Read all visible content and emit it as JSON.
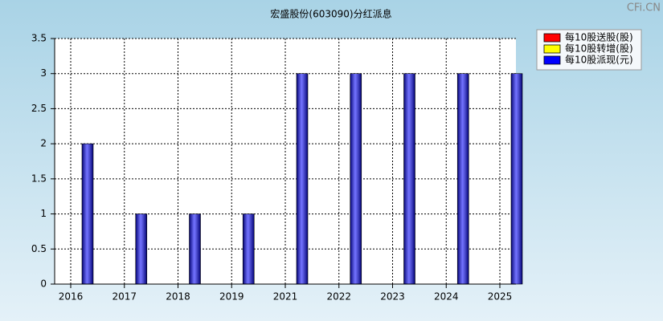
{
  "chart_data": {
    "type": "bar",
    "title": "宏盛股份(603090)分红派息",
    "watermark": "CFi.CN",
    "categories": [
      "2016",
      "2017",
      "2018",
      "2019",
      "2021",
      "2022",
      "2023",
      "2024",
      "2025"
    ],
    "series": [
      {
        "name": "每10股送股(股)",
        "color": "#ff0000",
        "values": [
          0,
          0,
          0,
          0,
          0,
          0,
          0,
          0,
          0
        ]
      },
      {
        "name": "每10股转增(股)",
        "color": "#ffff00",
        "values": [
          0,
          0,
          0,
          0,
          0,
          0,
          0,
          0,
          0
        ]
      },
      {
        "name": "每10股派现(元)",
        "color": "#0000ff",
        "values": [
          2,
          1,
          1,
          1,
          3,
          3,
          3,
          3,
          3
        ]
      }
    ],
    "ylim": [
      0,
      3.5
    ],
    "yticks": [
      0,
      0.5,
      1,
      1.5,
      2,
      2.5,
      3,
      3.5
    ],
    "grid": true,
    "legend": "top-right"
  }
}
